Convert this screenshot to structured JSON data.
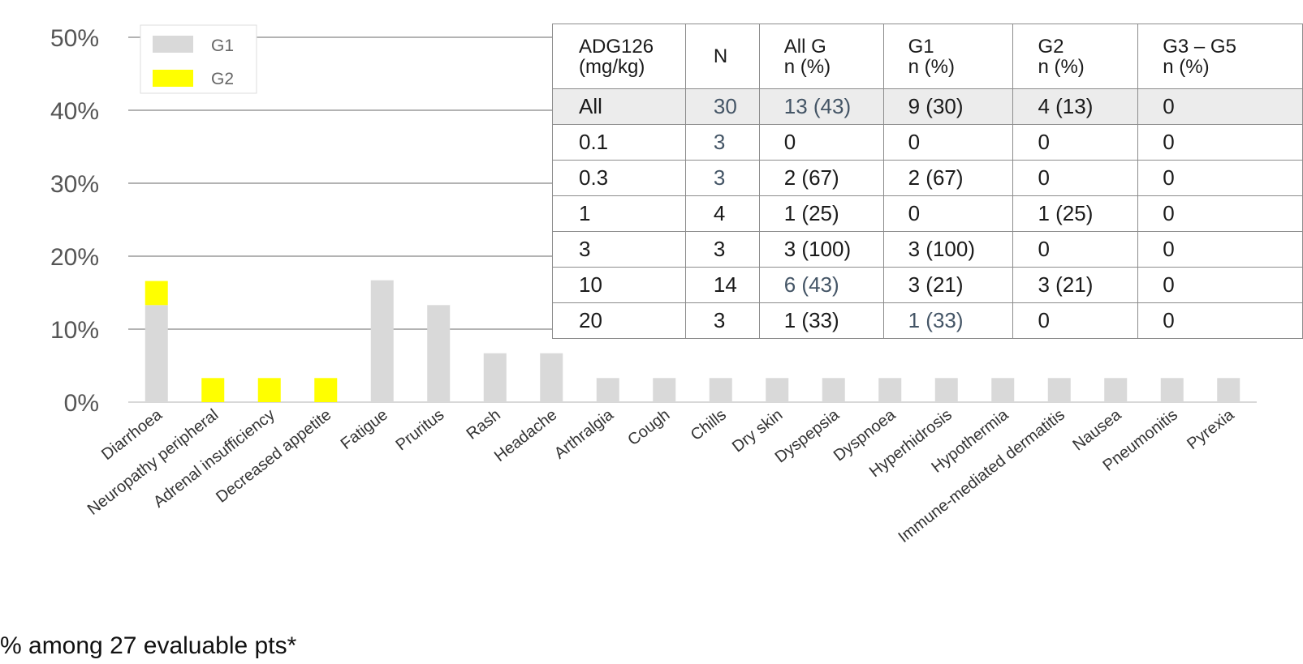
{
  "chart_data": {
    "type": "bar",
    "stacked": true,
    "categories": [
      "Diarrhoea",
      "Neuropathy peripheral",
      "Adrenal insufficiency",
      "Decreased appetite",
      "Fatigue",
      "Pruritus",
      "Rash",
      "Headache",
      "Arthralgia",
      "Cough",
      "Chills",
      "Dry skin",
      "Dyspepsia",
      "Dyspnoea",
      "Hyperhidrosis",
      "Hypothermia",
      "Immune-mediated dermatitis",
      "Nausea",
      "Pneumonitis",
      "Pyrexia"
    ],
    "series": [
      {
        "name": "G1",
        "color": "#d9d9d9",
        "values": [
          13.3,
          0,
          0,
          0,
          16.7,
          13.3,
          6.7,
          6.7,
          3.3,
          3.3,
          3.3,
          3.3,
          3.3,
          3.3,
          3.3,
          3.3,
          3.3,
          3.3,
          3.3,
          3.3
        ]
      },
      {
        "name": "G2",
        "color": "#ffff00",
        "values": [
          3.3,
          3.3,
          3.3,
          3.3,
          0,
          0,
          0,
          0,
          0,
          0,
          0,
          0,
          0,
          0,
          0,
          0,
          0,
          0,
          0,
          0
        ]
      }
    ],
    "yticks": [
      "0%",
      "10%",
      "20%",
      "30%",
      "40%",
      "50%"
    ],
    "ylim": [
      0,
      50
    ],
    "grid": true,
    "legend_position": "top-left"
  },
  "table": {
    "headers": [
      [
        "ADG126",
        "(mg/kg)"
      ],
      [
        "N"
      ],
      [
        "All G",
        "n (%)"
      ],
      [
        "G1",
        "n (%)"
      ],
      [
        "G2",
        "n (%)"
      ],
      [
        "G3 – G5",
        "n (%)"
      ]
    ],
    "rows": [
      [
        "All",
        "30",
        "13 (43)",
        "9 (30)",
        "4 (13)",
        "0"
      ],
      [
        "0.1",
        "3",
        "0",
        "0",
        "0",
        "0"
      ],
      [
        "0.3",
        "3",
        "2 (67)",
        "2 (67)",
        "0",
        "0"
      ],
      [
        "1",
        "4",
        "1 (25)",
        "0",
        "1 (25)",
        "0"
      ],
      [
        "3",
        "3",
        "3 (100)",
        "3 (100)",
        "0",
        "0"
      ],
      [
        "10",
        "14",
        "6 (43)",
        "3 (21)",
        "3 (21)",
        "0"
      ],
      [
        "20",
        "3",
        "1 (33)",
        "1 (33)",
        "0",
        "0"
      ]
    ]
  },
  "footnote": "% among 27 evaluable pts*"
}
